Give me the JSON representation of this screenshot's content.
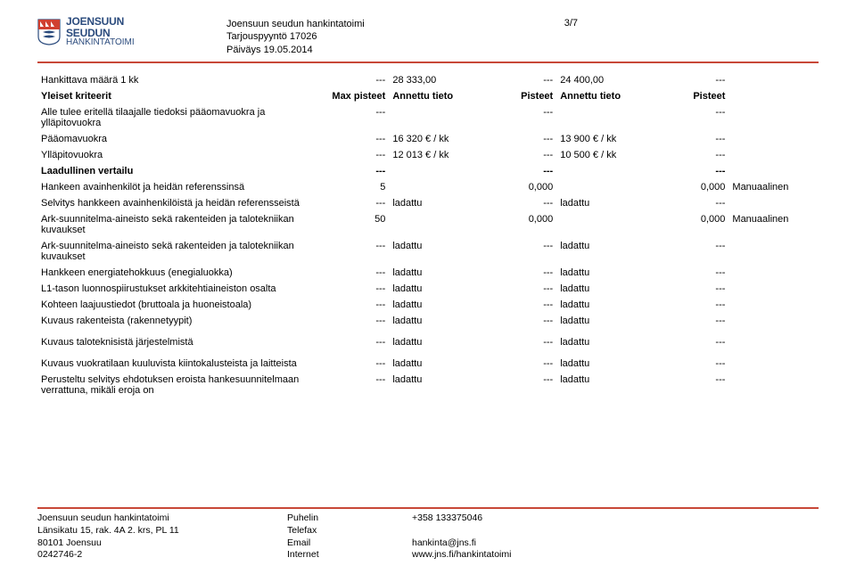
{
  "header": {
    "logo_line1": "JOENSUUN",
    "logo_line2": "SEUDUN",
    "logo_sub": "HANKINTATOIMI",
    "logo_shield_colors": {
      "top": "#d04030",
      "bottom": "#ffffff",
      "stroke": "#2b4b7d"
    },
    "meta_org": "Joensuun seudun hankintatoimi",
    "meta_ref": "Tarjouspyyntö 17026",
    "meta_date": "Päiväys 19.05.2014",
    "page_num": "3/7"
  },
  "hr_color": "#c84838",
  "table": {
    "rows": [
      {
        "label": "Hankittava määrä 1 kk",
        "c1": "---",
        "c2": "28 333,00",
        "c3": "---",
        "c4": "24 400,00",
        "c5": "---",
        "c6": "",
        "bold": false
      },
      {
        "label": "Yleiset kriteerit",
        "c1": "Max pisteet",
        "c2": "Annettu tieto",
        "c3": "Pisteet",
        "c4": "Annettu tieto",
        "c5": "Pisteet",
        "c6": "",
        "bold": true
      },
      {
        "label": "Alle tulee eritellä tilaajalle tiedoksi pääomavuokra ja ylläpitovuokra",
        "c1": "---",
        "c2": "",
        "c3": "---",
        "c4": "",
        "c5": "---",
        "c6": ""
      },
      {
        "label": "Pääomavuokra",
        "c1": "---",
        "c2": "16 320 € / kk",
        "c3": "---",
        "c4": "13 900 € / kk",
        "c5": "---",
        "c6": ""
      },
      {
        "label": "Ylläpitovuokra",
        "c1": "---",
        "c2": "12 013 € / kk",
        "c3": "---",
        "c4": "10 500 € / kk",
        "c5": "---",
        "c6": ""
      },
      {
        "label": "Laadullinen vertailu",
        "c1": "---",
        "c2": "",
        "c3": "---",
        "c4": "",
        "c5": "---",
        "c6": "",
        "bold": true
      },
      {
        "label": "Hankeen avainhenkilöt ja heidän referenssinsä",
        "c1": "5",
        "c2": "",
        "c3": "0,000",
        "c4": "",
        "c5": "0,000",
        "c6": "Manuaalinen"
      },
      {
        "label": "Selvitys hankkeen avainhenkilöistä ja heidän referensseistä",
        "c1": "---",
        "c2": "ladattu",
        "c3": "---",
        "c4": "ladattu",
        "c5": "---",
        "c6": ""
      },
      {
        "label": "Ark-suunnitelma-aineisto sekä rakenteiden ja talotekniikan kuvaukset",
        "c1": "50",
        "c2": "",
        "c3": "0,000",
        "c4": "",
        "c5": "0,000",
        "c6": "Manuaalinen"
      },
      {
        "label": "Ark-suunnitelma-aineisto sekä rakenteiden ja talotekniikan kuvaukset",
        "c1": "---",
        "c2": "ladattu",
        "c3": "---",
        "c4": "ladattu",
        "c5": "---",
        "c6": ""
      },
      {
        "label": "Hankkeen energiatehokkuus (enegialuokka)",
        "c1": "---",
        "c2": "ladattu",
        "c3": "---",
        "c4": "ladattu",
        "c5": "---",
        "c6": ""
      },
      {
        "label": "L1-tason luonnospiirustukset arkkitehtiaineiston osalta",
        "c1": "---",
        "c2": "ladattu",
        "c3": "---",
        "c4": "ladattu",
        "c5": "---",
        "c6": ""
      },
      {
        "label": "Kohteen laajuustiedot (bruttoala ja huoneistoala)",
        "c1": "---",
        "c2": "ladattu",
        "c3": "---",
        "c4": "ladattu",
        "c5": "---",
        "c6": ""
      },
      {
        "label": "Kuvaus rakenteista (rakennetyypit)",
        "c1": "---",
        "c2": "ladattu",
        "c3": "---",
        "c4": "ladattu",
        "c5": "---",
        "c6": ""
      },
      {
        "gap": true
      },
      {
        "label": "Kuvaus taloteknisistä järjestelmistä",
        "c1": "---",
        "c2": "ladattu",
        "c3": "---",
        "c4": "ladattu",
        "c5": "---",
        "c6": ""
      },
      {
        "gap": true
      },
      {
        "label": "Kuvaus vuokratilaan kuuluvista kiintokalusteista ja laitteista",
        "c1": "---",
        "c2": "ladattu",
        "c3": "---",
        "c4": "ladattu",
        "c5": "---",
        "c6": ""
      },
      {
        "label": "Perusteltu selvitys ehdotuksen eroista hankesuunnitelmaan verrattuna, mikäli eroja on",
        "c1": "---",
        "c2": "ladattu",
        "c3": "---",
        "c4": "ladattu",
        "c5": "---",
        "c6": ""
      }
    ]
  },
  "footer": {
    "col1_l1": "Joensuun seudun hankintatoimi",
    "col1_l2": "Länsikatu 15, rak. 4A 2. krs, PL 11",
    "col1_l3": "80101 Joensuu",
    "col1_l4": "0242746-2",
    "col2_l1": "Puhelin",
    "col2_l2": "Telefax",
    "col2_l3": "Email",
    "col2_l4": "Internet",
    "col3_l1": "+358 133375046",
    "col3_l2": "",
    "col3_l3": "hankinta@jns.fi",
    "col3_l4": "www.jns.fi/hankintatoimi"
  }
}
